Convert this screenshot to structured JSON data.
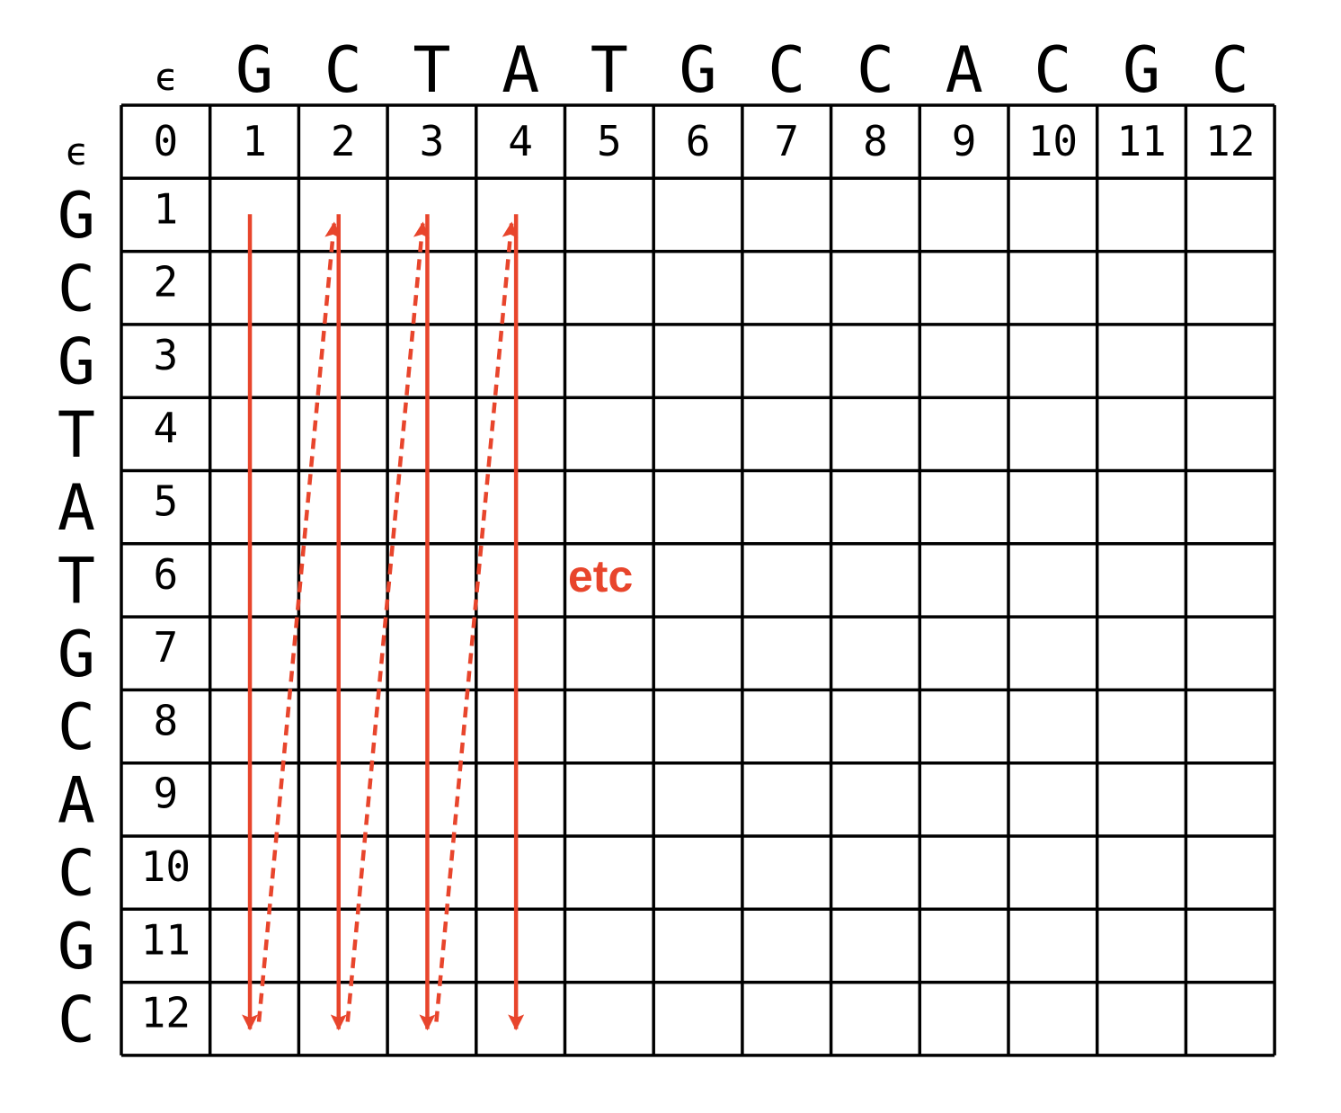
{
  "epsilon": "ϵ",
  "top_sequence": [
    "G",
    "C",
    "T",
    "A",
    "T",
    "G",
    "C",
    "C",
    "A",
    "C",
    "G",
    "C"
  ],
  "left_sequence": [
    "G",
    "C",
    "G",
    "T",
    "A",
    "T",
    "G",
    "C",
    "A",
    "C",
    "G",
    "C"
  ],
  "column_indices": [
    "0",
    "1",
    "2",
    "3",
    "4",
    "5",
    "6",
    "7",
    "8",
    "9",
    "10",
    "11",
    "12"
  ],
  "row_indices": [
    "1",
    "2",
    "3",
    "4",
    "5",
    "6",
    "7",
    "8",
    "9",
    "10",
    "11",
    "12"
  ],
  "fill_order": {
    "down_columns": [
      1,
      2,
      3,
      4
    ],
    "return_paths": [
      [
        1,
        2
      ],
      [
        2,
        3
      ],
      [
        3,
        4
      ]
    ]
  },
  "annotation": "etc",
  "colors": {
    "grid": "#000000",
    "arrow": "#e8452c",
    "shadow": "#d6d6d6",
    "background": "#ffffff"
  }
}
